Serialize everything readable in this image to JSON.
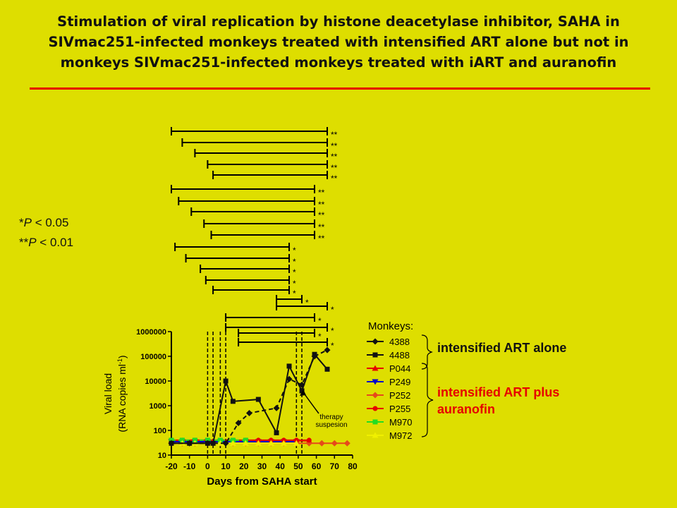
{
  "title_lines": [
    "Stimulation of viral replication by histone deacetylase inhibitor, SAHA in",
    "SIVmac251-infected monkeys treated with intensified ART alone but not in",
    "monkeys SIVmac251-infected monkeys treated with iART and auranofin"
  ],
  "significance": {
    "single_prefix": "*",
    "single_p": "P",
    "single_rest": " < 0.05",
    "double_prefix": "**",
    "double_p": "P",
    "double_rest": " < 0.01"
  },
  "groups": {
    "alone": "intensified ART alone",
    "auranofin_line1": "intensified ART plus",
    "auranofin_line2": "auranofin"
  },
  "colors": {
    "background": "#dede00",
    "rule": "#e60000",
    "alone": "#111111",
    "auranofin": "#e60000"
  },
  "chart_data": {
    "type": "line",
    "xlabel": "Days from SAHA start",
    "ylabel_line1": "Viral load",
    "ylabel_line2": "(RNA copies ml",
    "ylabel_sup": "-1",
    "ylabel_tail": ")",
    "yscale": "log",
    "ylim": [
      10,
      1000000
    ],
    "xlim": [
      -20,
      80
    ],
    "xticks": [
      -20,
      -10,
      0,
      10,
      20,
      30,
      40,
      50,
      60,
      70,
      80
    ],
    "yticks": [
      10,
      100,
      1000,
      10000,
      100000,
      1000000
    ],
    "ytick_labels": [
      "10",
      "100",
      "1000",
      "10000",
      "100000",
      "1000000"
    ],
    "legend_title": "Monkeys:",
    "legend_position": "right",
    "annotation": [
      "therapy",
      "suspesion"
    ],
    "dashed_lines_x": [
      0,
      3,
      7,
      10,
      49,
      52
    ],
    "series": [
      {
        "name": "4388",
        "color": "#111111",
        "marker": "diamond",
        "dashed": true,
        "x": [
          -20,
          -10,
          0,
          10,
          17,
          23,
          38,
          45,
          52,
          59,
          66
        ],
        "y": [
          30,
          30,
          30,
          30,
          200,
          500,
          800,
          12000,
          7000,
          100000,
          180000
        ]
      },
      {
        "name": "4488",
        "color": "#111111",
        "marker": "square",
        "dashed": false,
        "x": [
          -20,
          -10,
          0,
          3,
          10,
          14,
          28,
          38,
          45,
          52,
          59,
          66
        ],
        "y": [
          30,
          30,
          30,
          30,
          10000,
          1500,
          1800,
          80,
          40000,
          4000,
          120000,
          30000
        ]
      },
      {
        "name": "P044",
        "color": "#e60000",
        "marker": "triangle-up",
        "dashed": false,
        "x": [
          -20,
          -14,
          -7,
          0,
          7,
          14,
          21,
          28,
          35,
          42,
          49,
          56
        ],
        "y": [
          38,
          38,
          38,
          38,
          38,
          38,
          38,
          38,
          38,
          38,
          38,
          38
        ]
      },
      {
        "name": "P249",
        "color": "#0000cc",
        "marker": "triangle-down",
        "dashed": false,
        "x": [
          -20,
          -14,
          -7,
          0,
          7,
          14,
          21,
          28,
          35,
          42,
          49
        ],
        "y": [
          35,
          35,
          35,
          35,
          35,
          35,
          35,
          35,
          35,
          35,
          35
        ]
      },
      {
        "name": "P252",
        "color": "#e64a1a",
        "marker": "diamond",
        "dashed": false,
        "x": [
          -20,
          -14,
          -7,
          0,
          7,
          14,
          21,
          28,
          35,
          42,
          49,
          56,
          63,
          70,
          77
        ],
        "y": [
          30,
          30,
          30,
          30,
          30,
          30,
          30,
          30,
          30,
          30,
          30,
          30,
          30,
          30,
          30
        ]
      },
      {
        "name": "P255",
        "color": "#e60000",
        "marker": "circle",
        "dashed": false,
        "x": [
          -20,
          -14,
          -7,
          0,
          7,
          14,
          21,
          28,
          35,
          42,
          49,
          56
        ],
        "y": [
          40,
          40,
          40,
          40,
          40,
          40,
          40,
          40,
          40,
          40,
          40,
          40
        ]
      },
      {
        "name": "M970",
        "color": "#22dd22",
        "marker": "square",
        "dashed": true,
        "x": [
          -20,
          -14,
          -7,
          0,
          7,
          14,
          21
        ],
        "y": [
          40,
          40,
          40,
          40,
          40,
          40,
          40
        ]
      },
      {
        "name": "M972",
        "color": "#f0f000",
        "marker": "triangle-up",
        "dashed": false,
        "x": [
          -20,
          -14,
          -7,
          0,
          7,
          14,
          21,
          28,
          35,
          42,
          49
        ],
        "y": [
          30,
          30,
          30,
          30,
          30,
          30,
          30,
          30,
          30,
          30,
          30
        ]
      }
    ],
    "significance_brackets": [
      {
        "from": -20,
        "to": 66,
        "label": "**"
      },
      {
        "from": -14,
        "to": 66,
        "label": "**"
      },
      {
        "from": -7,
        "to": 66,
        "label": "**"
      },
      {
        "from": 0,
        "to": 66,
        "label": "**"
      },
      {
        "from": 3,
        "to": 66,
        "label": "**"
      },
      {
        "from": -20,
        "to": 59,
        "label": "**"
      },
      {
        "from": -16,
        "to": 59,
        "label": "**"
      },
      {
        "from": -9,
        "to": 59,
        "label": "**"
      },
      {
        "from": -2,
        "to": 59,
        "label": "**"
      },
      {
        "from": 2,
        "to": 59,
        "label": "**"
      },
      {
        "from": -18,
        "to": 45,
        "label": "*"
      },
      {
        "from": -12,
        "to": 45,
        "label": "*"
      },
      {
        "from": -4,
        "to": 45,
        "label": "*"
      },
      {
        "from": -1,
        "to": 45,
        "label": "*"
      },
      {
        "from": 3,
        "to": 45,
        "label": "*"
      },
      {
        "from": 38,
        "to": 52,
        "label": "*"
      },
      {
        "from": 38,
        "to": 66,
        "label": "*"
      },
      {
        "from": 10,
        "to": 59,
        "label": "*"
      },
      {
        "from": 10,
        "to": 66,
        "label": "*"
      },
      {
        "from": 17,
        "to": 59,
        "label": "*"
      },
      {
        "from": 17,
        "to": 66,
        "label": "*"
      }
    ]
  }
}
